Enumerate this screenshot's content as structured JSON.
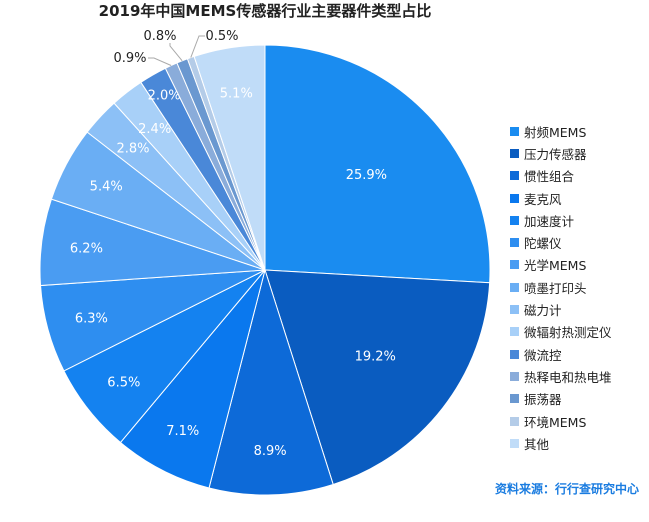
{
  "chart_data": {
    "type": "pie",
    "title": "2019年中国MEMS传感器行业主要器件类型占比",
    "unit": "%",
    "start": "12 o'clock, clockwise",
    "legend_position": "right",
    "slices": [
      {
        "label": "射频MEMS",
        "value": 25.9,
        "color": "#1a8cf0"
      },
      {
        "label": "压力传感器",
        "value": 19.2,
        "color": "#0a5cc0"
      },
      {
        "label": "惯性组合",
        "value": 8.9,
        "color": "#0d6ad8"
      },
      {
        "label": "麦克风",
        "value": 7.1,
        "color": "#0a78ee"
      },
      {
        "label": "加速度计",
        "value": 6.5,
        "color": "#1482f0"
      },
      {
        "label": "陀螺仪",
        "value": 6.3,
        "color": "#2e8ef0"
      },
      {
        "label": "光学MEMS",
        "value": 6.2,
        "color": "#4a9cf2"
      },
      {
        "label": "喷墨打印头",
        "value": 5.4,
        "color": "#6aaef4"
      },
      {
        "label": "磁力计",
        "value": 2.8,
        "color": "#8cc0f6"
      },
      {
        "label": "微辐射热测定仪",
        "value": 2.4,
        "color": "#a8d0f8"
      },
      {
        "label": "微流控",
        "value": 2.0,
        "color": "#4a88d8"
      },
      {
        "label": "热释电和热电堆",
        "value": 0.9,
        "color": "#8aacda"
      },
      {
        "label": "振荡器",
        "value": 0.8,
        "color": "#6a98d0"
      },
      {
        "label": "环境MEMS",
        "value": 0.5,
        "color": "#b4cce8"
      },
      {
        "label": "其他",
        "value": 5.1,
        "color": "#c0dcf8"
      }
    ],
    "data_labels": [
      "25.9%",
      "19.2%",
      "8.9%",
      "7.1%",
      "6.5%",
      "6.3%",
      "6.2%",
      "5.4%",
      "2.8%",
      "2.4%",
      "2.0%",
      "0.9%",
      "0.8%",
      "0.5%",
      "5.1%"
    ]
  },
  "source": "资料来源：行行查研究中心"
}
